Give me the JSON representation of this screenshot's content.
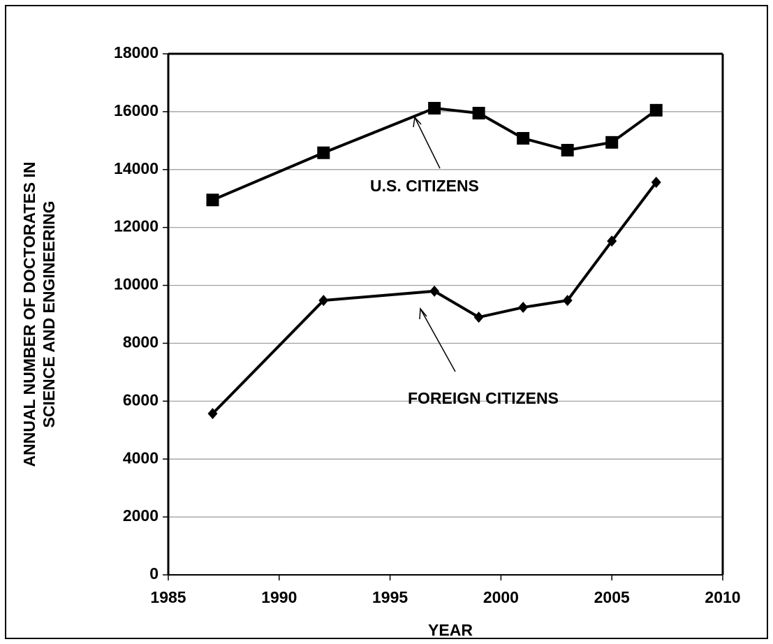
{
  "chart_data": {
    "type": "line",
    "xlabel": "YEAR",
    "ylabel": [
      "ANNUAL NUMBER OF DOCTORATES IN",
      "SCIENCE AND ENGINEERING"
    ],
    "series": [
      {
        "name": "U.S. CITIZENS",
        "color": "#000000",
        "marker": "square",
        "x": [
          1987,
          1992,
          1997,
          1999,
          2001,
          2003,
          2005,
          2007
        ],
        "values": [
          12950,
          14580,
          16120,
          15950,
          15080,
          14670,
          14940,
          16050
        ]
      },
      {
        "name": "FOREIGN CITIZENS",
        "color": "#000000",
        "marker": "diamond",
        "x": [
          1987,
          1992,
          1997,
          1999,
          2001,
          2003,
          2005,
          2007
        ],
        "values": [
          5570,
          9480,
          9800,
          8900,
          9240,
          9480,
          11530,
          13560
        ]
      }
    ],
    "xlim": [
      1985,
      2010
    ],
    "xticks": [
      1985,
      1990,
      1995,
      2000,
      2005,
      2010
    ],
    "ylim": [
      0,
      18000
    ],
    "yticks": [
      0,
      2000,
      4000,
      6000,
      8000,
      10000,
      12000,
      14000,
      16000,
      18000
    ],
    "grid": true
  }
}
